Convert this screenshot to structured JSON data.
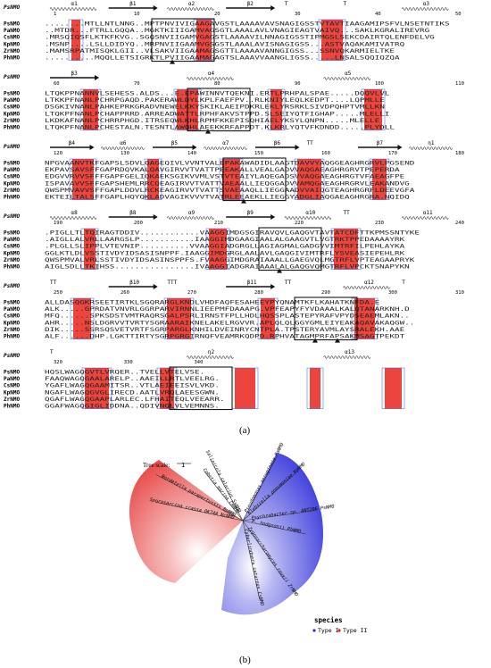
{
  "panels": {
    "a_label": "(a)",
    "b_label": "(b)"
  },
  "alignment": {
    "ref_label": "PsNMO",
    "species": [
      "PsNMO",
      "PaNMO",
      "CsNMO",
      "KpNMO",
      "ZrNMO",
      "PhNMO"
    ],
    "blocks": [
      {
        "structure": [
          {
            "type": "helix",
            "label": "α1"
          },
          {
            "type": "strand",
            "label": "β1"
          },
          {
            "type": "helix",
            "label": "α2"
          },
          {
            "type": "strand",
            "label": "β2"
          },
          {
            "type": "turn",
            "label": "T"
          },
          {
            "type": "turn",
            "label": "T"
          },
          {
            "type": "helix",
            "label": "α3"
          }
        ],
        "ticks": [
          "1",
          "10",
          "20",
          "30",
          "40",
          "50"
        ],
        "rows": [
          "........MTLLNTLNNG..MPTPNVIVIGAAGAVGSTLAAAAVAVSNAGIGSSTVTAVTIAAGAMIPSFVLNSETNTIKS",
          "..MTDR...FTRLLGQQA..MGKTKIIIGAMVAGSGTLAAALAVLVNAGIEAGTVAIVQ...SAKLKGRALIREVRG",
          ".MRSQIQSFLKTKFKVG..SGQSNVIIGAMVGAGSTLAAAAVILNNAGIGSSTIPMGSLSEKCDAIRTQLENFDELVG",
          ".MSNP....LSLLDIDYQ..MRPNVIIGAAMVGSGSTLAAALAVISNAGIGSS...ASTVAQAKAMIVATRQ",
          ".MAMSRPATMISQKLGII..VLSAKVIIGAAMAGSGTTLAAAAVANNGIGSS...SSNVQKARMIELTKE",
          "..........MQQLLETSIGRKTLPVIIGAAMAGAGTSLAAAVVAANGLIGSS.....LNSALSQQIQZQA"
        ],
        "triangles": [
          1
        ]
      },
      {
        "structure": [
          {
            "type": "strand",
            "label": "β3"
          },
          {
            "type": "helix",
            "label": "α4"
          },
          {
            "type": "helix",
            "label": "α5"
          }
        ],
        "ticks": [
          "60",
          "70",
          "80",
          "90",
          "100",
          "110"
        ],
        "rows": [
          "LTQKPPNANNVLSEHESS.ALDS...E.EPAWINNVTQEKNI.ERTLPRHPALSPAE.....DQQVLVL",
          "LTKKPFNANLPCHRPGAQD.PAKERAWLDYLKPLFAEFPV..RLKNIYLEQLKEDPT....LQPMLLE",
          "DSGKIVNANLPAHKEPRKGRADVNEWELKKYSKIKLAEIPDKRLEKLYRSRKLSIVDPQHPTVMLLKN",
          "LTQKPFNANLPCHAPPRRD.ARREADWATTLRPHFAKVSTPPD.SLSEIYQTFIGHAP.....MLELLI",
          "LKDKAFNANLPCHRRPHGD.ITRSEQWLKHLRPMFKKEPISQHIAELYKSYLQNPN.....MLELLE",
          "LTQKPFNANLPCHESTALN.TESNTLAWQHLAEEKKRFAPPDT.KLKRLYQTVFKDNDD.....PLYDLL"
        ],
        "triangles": [
          1
        ]
      },
      {
        "structure": [
          {
            "type": "strand",
            "label": "β4"
          },
          {
            "type": "helix",
            "label": "α6"
          },
          {
            "type": "strand",
            "label": "β5"
          },
          {
            "type": "helix",
            "label": "α7"
          },
          {
            "type": "strand",
            "label": "β6"
          },
          {
            "type": "turn",
            "label": "TT"
          },
          {
            "type": "strand",
            "label": "β7"
          },
          {
            "type": "helix",
            "label": "η1"
          }
        ],
        "ticks": [
          "120",
          "130",
          "140",
          "150",
          "160",
          "170",
          "180"
        ],
        "rows": [
          "NPGVAANVTKFGAPSLSDVLQAGEQIVLVVNTVALEPAKAWADIDLAAGTDAVVYAQGGEAGHRGRVLPGSEND",
          "EKPAVSAVSFFGAPRDQVKALQAVGIRVVTVATTPEEAKALLVEALGADVVAQGAEAGHRGRVTPEPERDA",
          "EDGVVRVVSFFFGAPFGELIQKAEKSGIKVVMLVSTVTEAIYLAQEGADSVVAQGAEAGHRGTVFAEAGFPE",
          "ISPAVAVVSFFGAPSHEMLRRCQEAGIRVVTVATTVAEAALLIEQGGADVVAMQGAEAGHRGRVLEAKANDVG",
          "QWSPMVAVVSFFGAPLDDVLRCKEAGIRVVTVATTSVAEAAQLLIEGGAADVVAIQGTEAGHRGRFLDEEVGFA",
          "EKTEILTALSFFGAPLHQYQKLADVAGIKVVVTVATRLEEAEKLLIEGGYADGLIAQGAEAGHRGRA.NQIDQ"
        ],
        "triangles": [
          1
        ]
      },
      {
        "structure": [
          {
            "type": "helix",
            "label": "α8"
          },
          {
            "type": "strand",
            "label": "β8"
          },
          {
            "type": "helix",
            "label": "α9"
          },
          {
            "type": "strand",
            "label": "β9"
          },
          {
            "type": "helix",
            "label": "α10"
          },
          {
            "type": "turn",
            "label": "TT"
          },
          {
            "type": "helix",
            "label": "α11"
          }
        ],
        "ticks": [
          "190",
          "200",
          "210",
          "220",
          "230",
          "240"
        ],
        "rows": [
          ".PIGLLTLTQIRAGTDDIV............VAAGGIMDGSGIRAVQVLGAQGVTAVTATCDFTTKPMSSNTYKE",
          ".AIGLLALVRLLAARGSLP...........IAAGGIMDGAAGIAALALGAAGVTLVGTRKTPPEDAAAAYRK",
          ".PLGLLSLIPPLVTEVNIP..........VVAAGGIADGRGLLAGIAGMALGADGVVIMTRFILPEHLAYKA",
          "GGLKTLDLVSSTIVDYIDSASISNPPF.IAAGGIMDGRGLAALAVLGAQGIVIMTRFLYSVEASIEPEHLRK",
          "QWSPMVALVRLSSTIVDYIDSASINSPPFS.FVAAGGIMDGRAIAAALLGAEGVQLMGTRFLVPTEAGAAPRYK",
          "AIGLSDLLTKIHSS................IVAAGGIADGRAIAAALALGAQGVQMGTRFLVPCKTSNAPYKN"
        ],
        "triangles": [
          1
        ]
      },
      {
        "structure": [
          {
            "type": "turn",
            "label": "TT"
          },
          {
            "type": "strand",
            "label": "β10"
          },
          {
            "type": "turn",
            "label": "TTT"
          },
          {
            "type": "strand",
            "label": "β11"
          },
          {
            "type": "turn",
            "label": "TT"
          },
          {
            "type": "helix",
            "label": "α12"
          },
          {
            "type": "turn",
            "label": "T"
          }
        ],
        "ticks": [
          "250",
          "260",
          "270",
          "280",
          "290",
          "300",
          "310"
        ],
        "rows": [
          "ALLDASQGKRSEETIRTKLSGQRARGLKNDLVHDFAQFESAHEEYPYQNAMTKFLKAHATKNFDA.E",
          "ALK.....GPRDATVNVRLGGRPARVIRNNLIEEPMFDAAAPG.VPFEAPYFYVDAAALKALQTANARKNH.D",
          "MFQ......SPKSDSTVMTRAQRSGALPSRLIRNSTFPLLHDLHQSSPLASTEPYRAFVPYDSEAEMLAKN..",
          "AHR.....NSLDGRVVTVRTYSGRAARAIKNELAKELRGVVR.APLQLQLGGYGMLEIYEAKAQAVAKAQGW..",
          "DIK.....SSRSQSVETVRTFSGRPARGLKNHILDVEINRYCNTPLA.TPSTERYAVMLAYSRALEKH.AAE",
          "ALF......DHP.LGKTTIRTYSGRPGRGIRNQFVEAMRKQDPD.RPHVATAGMPRFAPSAKMSAGTPEKDT"
        ],
        "triangles": [
          1,
          2
        ]
      },
      {
        "structure": [
          {
            "type": "turn",
            "label": "T"
          },
          {
            "type": "helix",
            "label": "η2"
          },
          {
            "type": "helix",
            "label": "α13"
          }
        ],
        "ticks": [
          "320",
          "330",
          "340"
        ],
        "rows": [
          "HQSLWAGQGVTLVRQER..TVELLVTELVSE.",
          "FAAQWAGQGAALARELP..AAEILLRTLVEELRG.",
          "YGAFLWAGQGAAMITSR..VTLAEIEEISVLVKD.",
          "NGAFLWAGQGVGLIRECD.AATLVRQLAEESGWN.",
          "QGAFLWAGQGAAPLARLEC.LFHAITEQLVEEARR.",
          "GGAFWAGQGIGLIDDNA..QDIVNQLVLVEMNNS."
        ],
        "triangles": []
      }
    ]
  },
  "tree": {
    "scale_label": "Tree scale:",
    "scale_value": "1",
    "legend_title": "species",
    "legend_items": [
      {
        "label": "Type I",
        "color": "#2b2bd6"
      },
      {
        "label": "Type II",
        "color": "#e02020"
      }
    ],
    "red_color": "#e63b3b",
    "blue_color": "#2929d9",
    "leaves": [
      "Salinicola salarius SsNMO",
      "Cobetia marina CmNMO",
      "Bordetella parapertussis BpNMO",
      "Sporosarcina crassa OK74A NcNMO",
      "Pseudomonas aeruginosa PaNMO",
      "Klebsiella pneumoniae KpNMO",
      "Psychrobacter sp. ANT206 PsNMO",
      "P. hodgsonii PhNMO",
      "Zygosaccharomyces rouxii ZrNMO",
      "Cyberlindnera saturnus CsNMO"
    ]
  }
}
